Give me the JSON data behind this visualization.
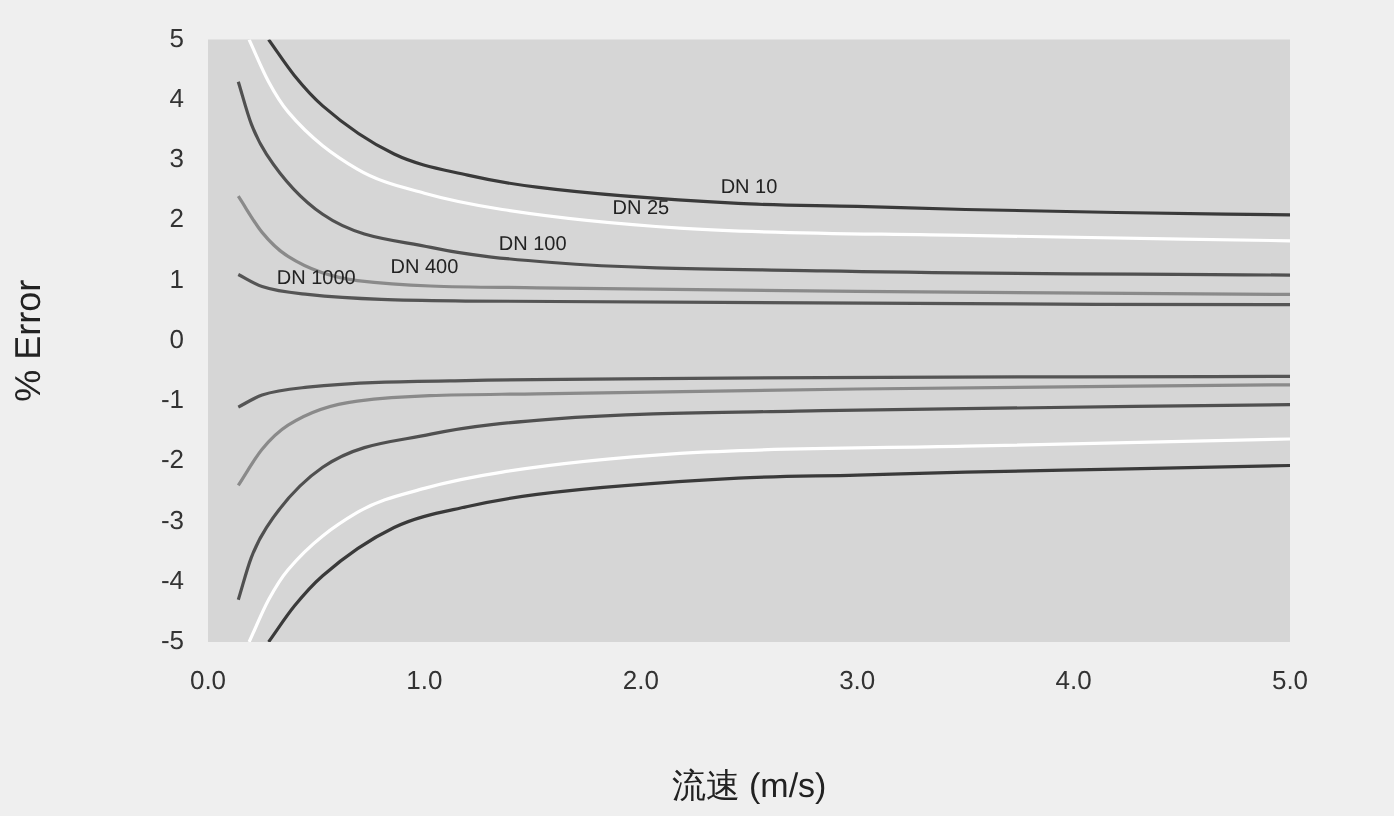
{
  "chart_data": {
    "type": "line",
    "xlabel": "流速 (m/s)",
    "ylabel": "% Error",
    "xlim": [
      0,
      5
    ],
    "ylim": [
      -5,
      5
    ],
    "xticks": [
      {
        "value": 0,
        "label": "0.0"
      },
      {
        "value": 1,
        "label": "1.0"
      },
      {
        "value": 2,
        "label": "2.0"
      },
      {
        "value": 3,
        "label": "3.0"
      },
      {
        "value": 4,
        "label": "4.0"
      },
      {
        "value": 5,
        "label": "5.0"
      }
    ],
    "yticks": [
      -5,
      -4,
      -3,
      -2,
      -1,
      0,
      1,
      2,
      3,
      4,
      5
    ],
    "grid": false,
    "legend": false,
    "marker": "none",
    "line_style": "solid",
    "series": [
      {
        "name": "DN 10",
        "color": "#3a3a3a",
        "x": [
          0.28,
          0.4,
          0.53,
          0.86,
          1.2,
          1.52,
          2.45,
          3.0,
          3.5,
          4.2,
          5.0
        ],
        "values": [
          5,
          4.4,
          3.9,
          3.1,
          2.75,
          2.55,
          2.28,
          2.23,
          2.18,
          2.13,
          2.09
        ]
      },
      {
        "name": "DN 25",
        "color": "#ffffff",
        "x": [
          0.19,
          0.28,
          0.37,
          0.69,
          1.0,
          1.36,
          2.18,
          3.5,
          5.0
        ],
        "values": [
          5,
          4.3,
          3.8,
          2.85,
          2.45,
          2.18,
          1.87,
          1.75,
          1.66
        ]
      },
      {
        "name": "DN 100",
        "color": "#505050",
        "x": [
          0.14,
          0.2,
          0.27,
          0.53,
          1.03,
          1.59,
          2.84,
          5.0
        ],
        "values": [
          4.3,
          3.6,
          3.1,
          2.1,
          1.55,
          1.3,
          1.16,
          1.09
        ]
      },
      {
        "name": "DN 400",
        "color": "#8a8a8a",
        "x": [
          0.14,
          0.25,
          0.37,
          0.69,
          1.52,
          3.0,
          5.0
        ],
        "values": [
          2.4,
          1.8,
          1.4,
          1.0,
          0.88,
          0.82,
          0.77
        ]
      },
      {
        "name": "DN 1000",
        "color": "#555555",
        "x": [
          0.14,
          0.25,
          0.46,
          1.19,
          5.0
        ],
        "values": [
          1.1,
          0.9,
          0.77,
          0.66,
          0.6
        ]
      },
      {
        "color": "#3a3a3a",
        "x": [
          0.28,
          0.4,
          0.53,
          0.86,
          1.2,
          1.52,
          2.45,
          3.0,
          3.5,
          4.2,
          5.0
        ],
        "values": [
          -5,
          -4.4,
          -3.9,
          -3.1,
          -2.75,
          -2.55,
          -2.28,
          -2.23,
          -2.18,
          -2.13,
          -2.07
        ]
      },
      {
        "color": "#ffffff",
        "x": [
          0.19,
          0.28,
          0.37,
          0.69,
          1.0,
          1.36,
          2.18,
          3.5,
          5.0
        ],
        "values": [
          -5,
          -4.3,
          -3.8,
          -2.85,
          -2.45,
          -2.18,
          -1.87,
          -1.75,
          -1.63
        ]
      },
      {
        "color": "#505050",
        "x": [
          0.14,
          0.2,
          0.27,
          0.53,
          1.03,
          1.59,
          2.84,
          5.0
        ],
        "values": [
          -4.3,
          -3.6,
          -3.1,
          -2.1,
          -1.55,
          -1.3,
          -1.16,
          -1.06
        ]
      },
      {
        "color": "#8a8a8a",
        "x": [
          0.14,
          0.25,
          0.37,
          0.69,
          1.52,
          3.0,
          5.0
        ],
        "values": [
          -2.4,
          -1.8,
          -1.4,
          -1.0,
          -0.88,
          -0.8,
          -0.73
        ]
      },
      {
        "color": "#555555",
        "x": [
          0.14,
          0.25,
          0.46,
          1.19,
          5.0
        ],
        "values": [
          -1.1,
          -0.9,
          -0.77,
          -0.66,
          -0.59
        ]
      }
    ]
  }
}
